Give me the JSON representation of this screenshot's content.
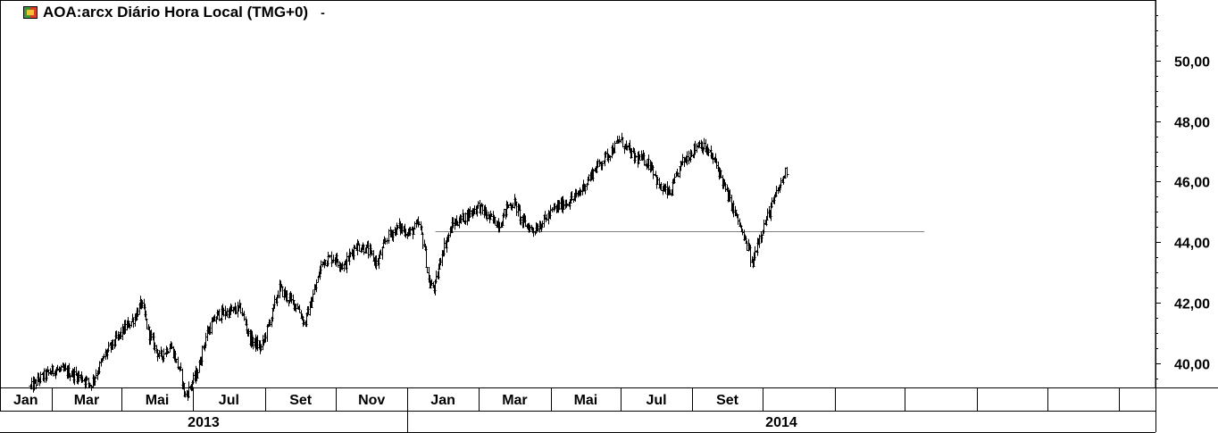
{
  "header": {
    "title": "AOA:arcx Diário Hora Local (TMG+0)",
    "menu_glyph": "-"
  },
  "chart_data": {
    "type": "bar",
    "subtype": "ohlc",
    "title": "AOA:arcx Diário Hora Local (TMG+0)",
    "xlabel": "",
    "ylabel": "",
    "ylim": [
      39.2,
      52.0
    ],
    "yticks": [
      40,
      42,
      44,
      46,
      48,
      50
    ],
    "ytick_labels": [
      "40,00",
      "42,00",
      "44,00",
      "46,00",
      "48,00",
      "50,00"
    ],
    "xlim": [
      0,
      15.95
    ],
    "month_labels": [
      "Jan",
      "Mar",
      "Mai",
      "Jul",
      "Set",
      "Nov",
      "Jan",
      "Mar",
      "Mai",
      "Jul",
      "Set"
    ],
    "month_boundaries": [
      0,
      0.71,
      1.68,
      2.66,
      3.66,
      4.64,
      5.62,
      6.61,
      7.6,
      8.57,
      9.55,
      10.53,
      11.52,
      12.49,
      13.48,
      14.46,
      15.44
    ],
    "year_labels": [
      "2013",
      "2014"
    ],
    "year_ranges": [
      [
        0,
        5.62
      ],
      [
        5.62,
        15.95
      ]
    ],
    "support_line": {
      "start": 6.01,
      "end": 12.76,
      "value": 44.35
    },
    "grid": false,
    "legend": "none",
    "series": [
      {
        "anchors": [
          [
            0.42,
            39.2
          ],
          [
            0.55,
            39.5
          ],
          [
            0.75,
            39.8
          ],
          [
            0.95,
            39.7
          ],
          [
            1.15,
            39.5
          ],
          [
            1.25,
            39.3
          ],
          [
            1.45,
            40.3
          ],
          [
            1.7,
            41.1
          ],
          [
            1.85,
            41.5
          ],
          [
            1.95,
            42.0
          ],
          [
            2.05,
            41.0
          ],
          [
            2.2,
            40.2
          ],
          [
            2.35,
            40.6
          ],
          [
            2.5,
            39.6
          ],
          [
            2.55,
            38.9
          ],
          [
            2.72,
            39.7
          ],
          [
            2.85,
            41.0
          ],
          [
            3.0,
            41.6
          ],
          [
            3.15,
            41.7
          ],
          [
            3.32,
            41.8
          ],
          [
            3.45,
            40.8
          ],
          [
            3.6,
            40.5
          ],
          [
            3.75,
            41.6
          ],
          [
            3.85,
            42.5
          ],
          [
            3.95,
            42.2
          ],
          [
            4.1,
            41.9
          ],
          [
            4.2,
            41.3
          ],
          [
            4.35,
            42.5
          ],
          [
            4.45,
            43.4
          ],
          [
            4.6,
            43.5
          ],
          [
            4.75,
            43.2
          ],
          [
            4.9,
            43.9
          ],
          [
            5.05,
            43.8
          ],
          [
            5.2,
            43.3
          ],
          [
            5.35,
            44.2
          ],
          [
            5.5,
            44.5
          ],
          [
            5.65,
            44.3
          ],
          [
            5.78,
            44.6
          ],
          [
            5.85,
            43.9
          ],
          [
            5.92,
            42.6
          ],
          [
            6.0,
            42.5
          ],
          [
            6.1,
            43.7
          ],
          [
            6.25,
            44.6
          ],
          [
            6.45,
            44.9
          ],
          [
            6.6,
            45.2
          ],
          [
            6.75,
            44.8
          ],
          [
            6.9,
            44.6
          ],
          [
            7.0,
            45.2
          ],
          [
            7.1,
            45.3
          ],
          [
            7.2,
            44.7
          ],
          [
            7.35,
            44.4
          ],
          [
            7.5,
            44.7
          ],
          [
            7.65,
            45.1
          ],
          [
            7.8,
            45.3
          ],
          [
            7.95,
            45.5
          ],
          [
            8.1,
            46.0
          ],
          [
            8.2,
            46.4
          ],
          [
            8.35,
            46.8
          ],
          [
            8.5,
            47.2
          ],
          [
            8.55,
            47.4
          ],
          [
            8.65,
            47.1
          ],
          [
            8.75,
            46.8
          ],
          [
            8.9,
            46.7
          ],
          [
            9.0,
            46.5
          ],
          [
            9.1,
            45.8
          ],
          [
            9.25,
            45.6
          ],
          [
            9.4,
            46.6
          ],
          [
            9.55,
            47.0
          ],
          [
            9.65,
            47.3
          ],
          [
            9.8,
            46.9
          ],
          [
            9.9,
            46.5
          ],
          [
            10.0,
            45.8
          ],
          [
            10.1,
            45.2
          ],
          [
            10.2,
            44.6
          ],
          [
            10.28,
            44.0
          ],
          [
            10.33,
            43.8
          ],
          [
            10.38,
            43.2
          ],
          [
            10.45,
            44.0
          ],
          [
            10.55,
            44.6
          ],
          [
            10.65,
            45.2
          ],
          [
            10.75,
            45.8
          ],
          [
            10.82,
            46.2
          ],
          [
            10.86,
            46.4
          ]
        ]
      }
    ]
  }
}
